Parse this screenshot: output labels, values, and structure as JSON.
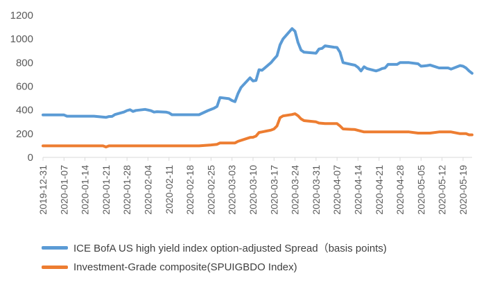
{
  "chart_data": {
    "type": "line",
    "title": "",
    "xlabel": "",
    "ylabel": "",
    "ylim": [
      0,
      1200
    ],
    "yticks": [
      0,
      200,
      400,
      600,
      800,
      1000,
      1200
    ],
    "xtick_labels": [
      "2019-12-31",
      "2020-01-07",
      "2020-01-14",
      "2020-01-21",
      "2020-01-28",
      "2020-02-04",
      "2020-02-11",
      "2020-02-18",
      "2020-02-25",
      "2020-03-03",
      "2020-03-10",
      "2020-03-17",
      "2020-03-24",
      "2020-03-31",
      "2020-04-07",
      "2020-04-14",
      "2020-04-21",
      "2020-04-28",
      "2020-05-05",
      "2020-05-12",
      "2020-05-19"
    ],
    "x_range": [
      "2019-12-31",
      "2020-05-22"
    ],
    "grid": false,
    "legend_position": "bottom",
    "series": [
      {
        "name": "ICE BofA US high yield index option-adjusted Spread（basis points)",
        "color": "#5b9bd5",
        "points": [
          [
            "2019-12-31",
            358
          ],
          [
            "2020-01-02",
            358
          ],
          [
            "2020-01-07",
            358
          ],
          [
            "2020-01-08",
            348
          ],
          [
            "2020-01-14",
            348
          ],
          [
            "2020-01-17",
            348
          ],
          [
            "2020-01-21",
            338
          ],
          [
            "2020-01-22",
            345
          ],
          [
            "2020-01-23",
            346
          ],
          [
            "2020-01-24",
            362
          ],
          [
            "2020-01-27",
            383
          ],
          [
            "2020-01-28",
            395
          ],
          [
            "2020-01-29",
            402
          ],
          [
            "2020-01-30",
            388
          ],
          [
            "2020-01-31",
            396
          ],
          [
            "2020-02-03",
            405
          ],
          [
            "2020-02-04",
            400
          ],
          [
            "2020-02-05",
            394
          ],
          [
            "2020-02-06",
            382
          ],
          [
            "2020-02-07",
            386
          ],
          [
            "2020-02-10",
            382
          ],
          [
            "2020-02-11",
            376
          ],
          [
            "2020-02-12",
            360
          ],
          [
            "2020-02-18",
            360
          ],
          [
            "2020-02-21",
            360
          ],
          [
            "2020-02-24",
            395
          ],
          [
            "2020-02-26",
            415
          ],
          [
            "2020-02-27",
            430
          ],
          [
            "2020-02-28",
            505
          ],
          [
            "2020-03-02",
            495
          ],
          [
            "2020-03-03",
            480
          ],
          [
            "2020-03-04",
            470
          ],
          [
            "2020-03-05",
            540
          ],
          [
            "2020-03-06",
            590
          ],
          [
            "2020-03-09",
            672
          ],
          [
            "2020-03-10",
            645
          ],
          [
            "2020-03-11",
            650
          ],
          [
            "2020-03-12",
            740
          ],
          [
            "2020-03-13",
            735
          ],
          [
            "2020-03-16",
            800
          ],
          [
            "2020-03-17",
            830
          ],
          [
            "2020-03-18",
            858
          ],
          [
            "2020-03-19",
            950
          ],
          [
            "2020-03-20",
            1000
          ],
          [
            "2020-03-23",
            1087
          ],
          [
            "2020-03-24",
            1065
          ],
          [
            "2020-03-25",
            970
          ],
          [
            "2020-03-26",
            905
          ],
          [
            "2020-03-27",
            888
          ],
          [
            "2020-03-31",
            880
          ],
          [
            "2020-04-01",
            915
          ],
          [
            "2020-04-02",
            920
          ],
          [
            "2020-04-03",
            942
          ],
          [
            "2020-04-06",
            930
          ],
          [
            "2020-04-07",
            928
          ],
          [
            "2020-04-08",
            888
          ],
          [
            "2020-04-09",
            800
          ],
          [
            "2020-04-13",
            778
          ],
          [
            "2020-04-14",
            760
          ],
          [
            "2020-04-15",
            730
          ],
          [
            "2020-04-16",
            765
          ],
          [
            "2020-04-17",
            750
          ],
          [
            "2020-04-20",
            730
          ],
          [
            "2020-04-21",
            738
          ],
          [
            "2020-04-22",
            750
          ],
          [
            "2020-04-23",
            755
          ],
          [
            "2020-04-24",
            785
          ],
          [
            "2020-04-27",
            785
          ],
          [
            "2020-04-28",
            800
          ],
          [
            "2020-05-01",
            800
          ],
          [
            "2020-05-04",
            790
          ],
          [
            "2020-05-05",
            770
          ],
          [
            "2020-05-06",
            772
          ],
          [
            "2020-05-07",
            775
          ],
          [
            "2020-05-08",
            780
          ],
          [
            "2020-05-11",
            755
          ],
          [
            "2020-05-13",
            755
          ],
          [
            "2020-05-14",
            755
          ],
          [
            "2020-05-15",
            745
          ],
          [
            "2020-05-18",
            775
          ],
          [
            "2020-05-19",
            770
          ],
          [
            "2020-05-20",
            755
          ],
          [
            "2020-05-21",
            730
          ],
          [
            "2020-05-22",
            710
          ]
        ]
      },
      {
        "name": "Investment-Grade composite(SPUIGBDO Index)",
        "color": "#ed7d31",
        "points": [
          [
            "2019-12-31",
            97
          ],
          [
            "2020-01-20",
            97
          ],
          [
            "2020-01-21",
            88
          ],
          [
            "2020-01-22",
            97
          ],
          [
            "2020-02-21",
            97
          ],
          [
            "2020-02-25",
            105
          ],
          [
            "2020-02-27",
            110
          ],
          [
            "2020-02-28",
            122
          ],
          [
            "2020-03-04",
            122
          ],
          [
            "2020-03-05",
            135
          ],
          [
            "2020-03-09",
            168
          ],
          [
            "2020-03-10",
            170
          ],
          [
            "2020-03-11",
            180
          ],
          [
            "2020-03-12",
            210
          ],
          [
            "2020-03-13",
            215
          ],
          [
            "2020-03-16",
            230
          ],
          [
            "2020-03-17",
            240
          ],
          [
            "2020-03-18",
            265
          ],
          [
            "2020-03-19",
            335
          ],
          [
            "2020-03-20",
            350
          ],
          [
            "2020-03-23",
            362
          ],
          [
            "2020-03-24",
            368
          ],
          [
            "2020-03-25",
            352
          ],
          [
            "2020-03-26",
            325
          ],
          [
            "2020-03-27",
            310
          ],
          [
            "2020-03-31",
            300
          ],
          [
            "2020-04-01",
            290
          ],
          [
            "2020-04-03",
            285
          ],
          [
            "2020-04-06",
            285
          ],
          [
            "2020-04-07",
            285
          ],
          [
            "2020-04-08",
            265
          ],
          [
            "2020-04-09",
            240
          ],
          [
            "2020-04-13",
            235
          ],
          [
            "2020-04-14",
            228
          ],
          [
            "2020-04-16",
            215
          ],
          [
            "2020-04-20",
            215
          ],
          [
            "2020-05-01",
            215
          ],
          [
            "2020-05-04",
            205
          ],
          [
            "2020-05-08",
            205
          ],
          [
            "2020-05-11",
            215
          ],
          [
            "2020-05-15",
            215
          ],
          [
            "2020-05-18",
            200
          ],
          [
            "2020-05-20",
            200
          ],
          [
            "2020-05-21",
            190
          ],
          [
            "2020-05-22",
            190
          ]
        ]
      }
    ]
  }
}
